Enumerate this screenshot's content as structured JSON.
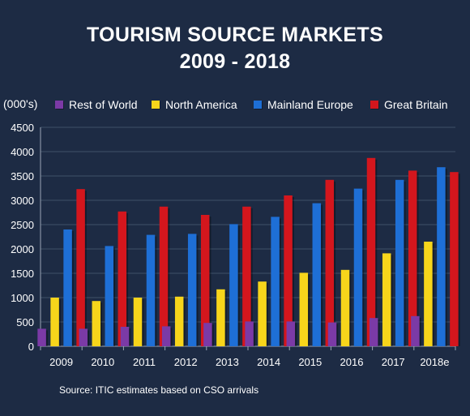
{
  "chart_data": {
    "type": "bar",
    "title": "TOURISM SOURCE MARKETS",
    "subtitle": "2009 - 2018",
    "ylabel": "(000's)",
    "xlabel": "",
    "ylim": [
      0,
      4500
    ],
    "yticks": [
      0,
      500,
      1000,
      1500,
      2000,
      2500,
      3000,
      3500,
      4000,
      4500
    ],
    "grid": true,
    "legend_position": "top",
    "categories": [
      "2009",
      "2010",
      "2011",
      "2012",
      "2013",
      "2014",
      "2015",
      "2016",
      "2017",
      "2018e"
    ],
    "series": [
      {
        "name": "Rest of World",
        "color": "#7b3aa6",
        "values": [
          360,
          360,
          400,
          410,
          480,
          510,
          510,
          490,
          580,
          620
        ]
      },
      {
        "name": "North America",
        "color": "#f7d51b",
        "values": [
          1000,
          930,
          1000,
          1020,
          1170,
          1330,
          1510,
          1570,
          1910,
          2150
        ]
      },
      {
        "name": "Mainland Europe",
        "color": "#1e6fd6",
        "values": [
          2400,
          2060,
          2290,
          2310,
          2510,
          2660,
          2940,
          3240,
          3420,
          3680
        ]
      },
      {
        "name": "Great Britain",
        "color": "#d4161d",
        "values": [
          3230,
          2770,
          2870,
          2700,
          2870,
          3100,
          3420,
          3870,
          3610,
          3580
        ]
      }
    ],
    "source": "Source: ITIC estimates based on CSO arrivals"
  }
}
